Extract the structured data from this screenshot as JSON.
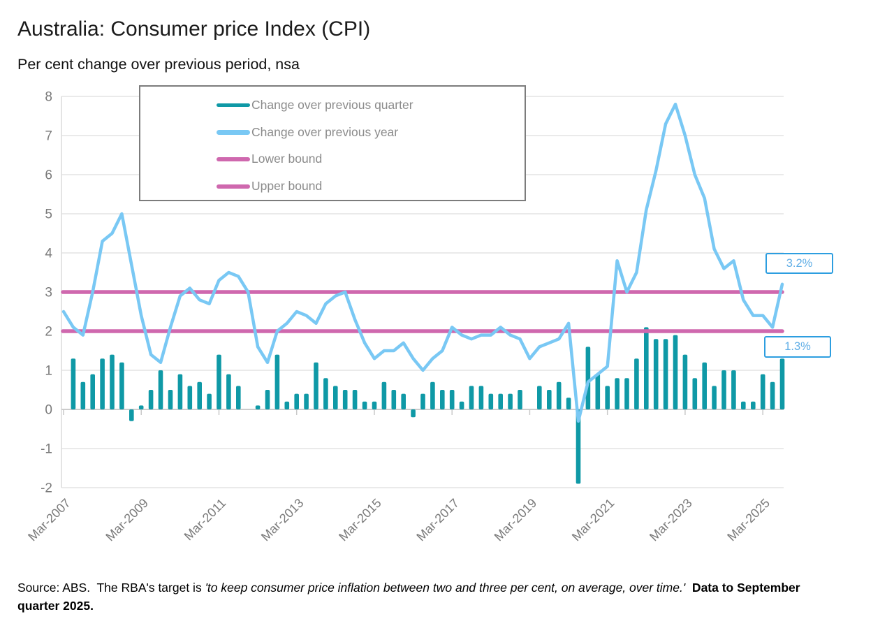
{
  "header": {
    "title": "Australia: Consumer price Index (CPI)",
    "subtitle": "Per cent change over previous period, nsa"
  },
  "legend": {
    "items": [
      {
        "label": "Change over previous quarter",
        "color": "#0f99a6",
        "thickness": 5
      },
      {
        "label": "Change over previous year",
        "color": "#79c8f4",
        "thickness": 7
      },
      {
        "label": "Lower bound",
        "color": "#cf68ae",
        "thickness": 6
      },
      {
        "label": "Upper bound",
        "color": "#cf68ae",
        "thickness": 6
      }
    ]
  },
  "footer": {
    "source_normal": "Source: ABS.  The RBA's target is ",
    "source_italic": "'to keep consumer price inflation between two and three per cent, on average, over time.'",
    "source_bold": "  Data to September quarter 2025."
  },
  "colors": {
    "bar": "#0f99a6",
    "line": "#79c8f4",
    "bounds": "#cf68ae",
    "annotation_border": "#2d9ee0",
    "annotation_text": "#60aee6",
    "grid": "#e4e4e4",
    "axis": "#cccccc",
    "tick_label": "#7a7a7a"
  },
  "chart_data": {
    "type": "bar+line",
    "title": "Australia: Consumer price Index (CPI)",
    "subtitle": "Per cent change over previous period, nsa",
    "ylim": [
      -2,
      8
    ],
    "yticks": [
      8,
      7,
      6,
      5,
      4,
      3,
      2,
      1,
      0,
      -1,
      -2
    ],
    "xticks": [
      "Mar-2007",
      "Mar-2009",
      "Mar-2011",
      "Mar-2013",
      "Mar-2015",
      "Mar-2017",
      "Mar-2019",
      "Mar-2021",
      "Mar-2023",
      "Mar-2025"
    ],
    "grid": true,
    "legend_position": "top-left-inside",
    "x": [
      "Mar-2007",
      "Jun-2007",
      "Sep-2007",
      "Dec-2007",
      "Mar-2008",
      "Jun-2008",
      "Sep-2008",
      "Dec-2008",
      "Mar-2009",
      "Jun-2009",
      "Sep-2009",
      "Dec-2009",
      "Mar-2010",
      "Jun-2010",
      "Sep-2010",
      "Dec-2010",
      "Mar-2011",
      "Jun-2011",
      "Sep-2011",
      "Dec-2011",
      "Mar-2012",
      "Jun-2012",
      "Sep-2012",
      "Dec-2012",
      "Mar-2013",
      "Jun-2013",
      "Sep-2013",
      "Dec-2013",
      "Mar-2014",
      "Jun-2014",
      "Sep-2014",
      "Dec-2014",
      "Mar-2015",
      "Jun-2015",
      "Sep-2015",
      "Dec-2015",
      "Mar-2016",
      "Jun-2016",
      "Sep-2016",
      "Dec-2016",
      "Mar-2017",
      "Jun-2017",
      "Sep-2017",
      "Dec-2017",
      "Mar-2018",
      "Jun-2018",
      "Sep-2018",
      "Dec-2018",
      "Mar-2019",
      "Jun-2019",
      "Sep-2019",
      "Dec-2019",
      "Mar-2020",
      "Jun-2020",
      "Sep-2020",
      "Dec-2020",
      "Mar-2021",
      "Jun-2021",
      "Sep-2021",
      "Dec-2021",
      "Mar-2022",
      "Jun-2022",
      "Sep-2022",
      "Dec-2022",
      "Mar-2023",
      "Jun-2023",
      "Sep-2023",
      "Dec-2023",
      "Mar-2024",
      "Jun-2024",
      "Sep-2024",
      "Dec-2024",
      "Mar-2025",
      "Jun-2025",
      "Sep-2025"
    ],
    "series": [
      {
        "name": "Change over previous quarter",
        "type": "bar",
        "color": "#0f99a6",
        "values": [
          null,
          1.3,
          0.7,
          0.9,
          1.3,
          1.4,
          1.2,
          -0.3,
          0.1,
          0.5,
          1.0,
          0.5,
          0.9,
          0.6,
          0.7,
          0.4,
          1.4,
          0.9,
          0.6,
          0.0,
          0.1,
          0.5,
          1.4,
          0.2,
          0.4,
          0.4,
          1.2,
          0.8,
          0.6,
          0.5,
          0.5,
          0.2,
          0.2,
          0.7,
          0.5,
          0.4,
          -0.2,
          0.4,
          0.7,
          0.5,
          0.5,
          0.2,
          0.6,
          0.6,
          0.4,
          0.4,
          0.4,
          0.5,
          0.0,
          0.6,
          0.5,
          0.7,
          0.3,
          -1.9,
          1.6,
          0.9,
          0.6,
          0.8,
          0.8,
          1.3,
          2.1,
          1.8,
          1.8,
          1.9,
          1.4,
          0.8,
          1.2,
          0.6,
          1.0,
          1.0,
          0.2,
          0.2,
          0.9,
          0.7,
          1.3
        ]
      },
      {
        "name": "Change over previous year",
        "type": "line",
        "color": "#79c8f4",
        "values": [
          2.5,
          2.1,
          1.9,
          3.0,
          4.3,
          4.5,
          5.0,
          3.7,
          2.4,
          1.4,
          1.2,
          2.1,
          2.9,
          3.1,
          2.8,
          2.7,
          3.3,
          3.5,
          3.4,
          3.0,
          1.6,
          1.2,
          2.0,
          2.2,
          2.5,
          2.4,
          2.2,
          2.7,
          2.9,
          3.0,
          2.3,
          1.7,
          1.3,
          1.5,
          1.5,
          1.7,
          1.3,
          1.0,
          1.3,
          1.5,
          2.1,
          1.9,
          1.8,
          1.9,
          1.9,
          2.1,
          1.9,
          1.8,
          1.3,
          1.6,
          1.7,
          1.8,
          2.2,
          -0.3,
          0.7,
          0.9,
          1.1,
          3.8,
          3.0,
          3.5,
          5.1,
          6.1,
          7.3,
          7.8,
          7.0,
          6.0,
          5.4,
          4.1,
          3.6,
          3.8,
          2.8,
          2.4,
          2.4,
          2.1,
          3.2
        ]
      },
      {
        "name": "Lower bound",
        "type": "hline",
        "color": "#cf68ae",
        "value": 2
      },
      {
        "name": "Upper bound",
        "type": "hline",
        "color": "#cf68ae",
        "value": 3
      }
    ],
    "annotations": [
      {
        "text": "3.2%",
        "attached_to": "Change over previous year",
        "value": 3.2
      },
      {
        "text": "1.3%",
        "attached_to": "Change over previous quarter",
        "value": 1.3
      }
    ]
  }
}
